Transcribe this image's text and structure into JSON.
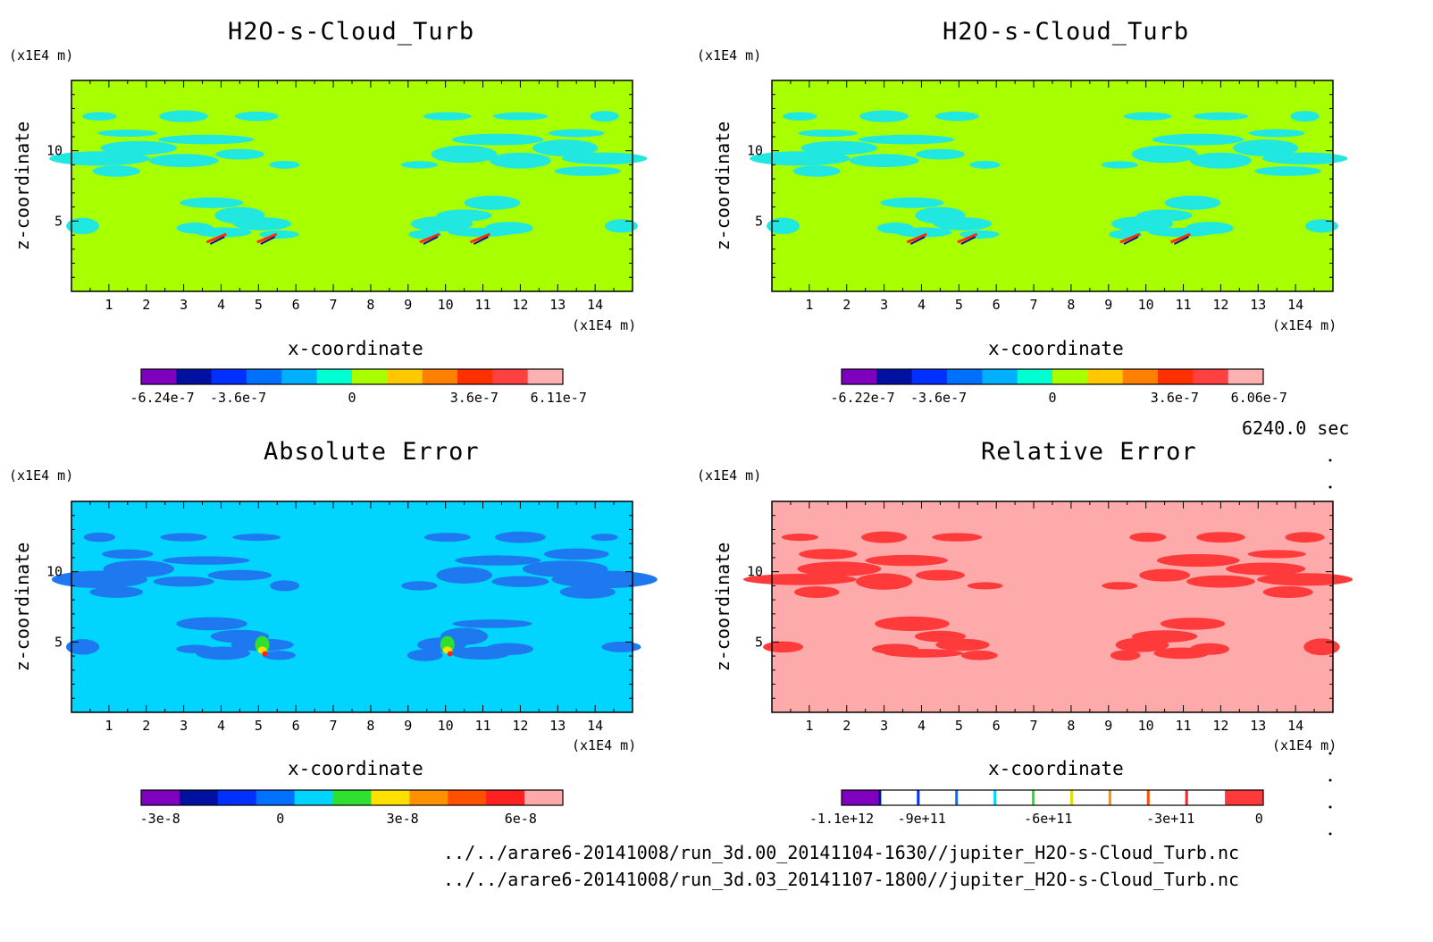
{
  "panels": [
    {
      "title": "H2O-s-Cloud_Turb",
      "unit_z": "(x1E4 m)",
      "unit_x": "(x1E4 m)",
      "xlabel": "x-coordinate",
      "ylabel": "z-coordinate",
      "background": "#a8ff00",
      "blob_color": "#20e8e0",
      "colorbar": {
        "colors": [
          "#8000c0",
          "#0010a0",
          "#0030ff",
          "#0070ff",
          "#00b0ff",
          "#00ffd0",
          "#a8ff00",
          "#ffc800",
          "#ff8000",
          "#ff3000",
          "#ff4040",
          "#ffb0b0"
        ],
        "labels": [
          "-6.24e-7",
          "-3.6e-7",
          "0",
          "3.6e-7",
          "6.11e-7"
        ]
      }
    },
    {
      "title": "H2O-s-Cloud_Turb",
      "unit_z": "(x1E4 m)",
      "unit_x": "(x1E4 m)",
      "xlabel": "x-coordinate",
      "ylabel": "z-coordinate",
      "background": "#a8ff00",
      "blob_color": "#20e8e0",
      "colorbar": {
        "colors": [
          "#8000c0",
          "#0010a0",
          "#0030ff",
          "#0070ff",
          "#00b0ff",
          "#00ffd0",
          "#a8ff00",
          "#ffc800",
          "#ff8000",
          "#ff3000",
          "#ff4040",
          "#ffb0b0"
        ],
        "labels": [
          "-6.22e-7",
          "-3.6e-7",
          "0",
          "3.6e-7",
          "6.06e-7"
        ]
      }
    },
    {
      "title": "Absolute Error",
      "unit_z": "(x1E4 m)",
      "unit_x": "(x1E4 m)",
      "xlabel": "x-coordinate",
      "ylabel": "z-coordinate",
      "background": "#00d4ff",
      "blob_color": "#1e78f0",
      "colorbar": {
        "colors": [
          "#8000c0",
          "#0010a0",
          "#0030ff",
          "#0070ff",
          "#00d4ff",
          "#30e030",
          "#ffe000",
          "#ff9000",
          "#ff5000",
          "#ff2020",
          "#ffaaaa"
        ],
        "labels": [
          "-3e-8",
          "0",
          "3e-8",
          "6e-8"
        ]
      }
    },
    {
      "title": "Relative Error",
      "unit_z": "(x1E4 m)",
      "unit_x": "(x1E4 m)",
      "xlabel": "x-coordinate",
      "ylabel": "z-coordinate",
      "background": "#ffaaaa",
      "blob_color": "#ff3a3a",
      "colorbar": {
        "colors": [
          "#8000c0",
          "#ffffff",
          "#ffffff",
          "#ffffff",
          "#ffffff",
          "#ffffff",
          "#ffffff",
          "#ffffff",
          "#ffffff",
          "#ffffff",
          "#ff3a3a"
        ],
        "labels": [
          "-1.1e+12",
          "-9e+11",
          "-6e+11",
          "-3e+11",
          "0"
        ]
      }
    }
  ],
  "time_label": "6240.0 sec",
  "files": [
    "../../arare6-20141008/run_3d.00_20141104-1630//jupiter_H2O-s-Cloud_Turb.nc",
    "../../arare6-20141008/run_3d.03_20141107-1800//jupiter_H2O-s-Cloud_Turb.nc"
  ],
  "chart_data": [
    {
      "type": "heatmap",
      "title": "H2O-s-Cloud_Turb",
      "xlabel": "x-coordinate",
      "ylabel": "z-coordinate",
      "x_unit": "(x1E4 m)",
      "z_unit": "(x1E4 m)",
      "xlim": [
        0,
        15
      ],
      "zlim": [
        0,
        15
      ],
      "x_ticks": [
        1,
        2,
        3,
        4,
        5,
        6,
        7,
        8,
        9,
        10,
        11,
        12,
        13,
        14
      ],
      "z_ticks": [
        5,
        10
      ],
      "colorbar_labels": [
        "-6.24e-7",
        "-3.6e-7",
        "0",
        "3.6e-7",
        "6.11e-7"
      ]
    },
    {
      "type": "heatmap",
      "title": "H2O-s-Cloud_Turb",
      "xlabel": "x-coordinate",
      "ylabel": "z-coordinate",
      "x_unit": "(x1E4 m)",
      "z_unit": "(x1E4 m)",
      "xlim": [
        0,
        15
      ],
      "zlim": [
        0,
        15
      ],
      "x_ticks": [
        1,
        2,
        3,
        4,
        5,
        6,
        7,
        8,
        9,
        10,
        11,
        12,
        13,
        14
      ],
      "z_ticks": [
        5,
        10
      ],
      "colorbar_labels": [
        "-6.22e-7",
        "-3.6e-7",
        "0",
        "3.6e-7",
        "6.06e-7"
      ]
    },
    {
      "type": "heatmap",
      "title": "Absolute Error",
      "xlabel": "x-coordinate",
      "ylabel": "z-coordinate",
      "x_unit": "(x1E4 m)",
      "z_unit": "(x1E4 m)",
      "xlim": [
        0,
        15
      ],
      "zlim": [
        0,
        15
      ],
      "x_ticks": [
        1,
        2,
        3,
        4,
        5,
        6,
        7,
        8,
        9,
        10,
        11,
        12,
        13,
        14
      ],
      "z_ticks": [
        5,
        10
      ],
      "colorbar_labels": [
        "-3e-8",
        "0",
        "3e-8",
        "6e-8"
      ]
    },
    {
      "type": "heatmap",
      "title": "Relative Error",
      "xlabel": "x-coordinate",
      "ylabel": "z-coordinate",
      "x_unit": "(x1E4 m)",
      "z_unit": "(x1E4 m)",
      "xlim": [
        0,
        15
      ],
      "zlim": [
        0,
        15
      ],
      "x_ticks": [
        1,
        2,
        3,
        4,
        5,
        6,
        7,
        8,
        9,
        10,
        11,
        12,
        13,
        14
      ],
      "z_ticks": [
        5,
        10
      ],
      "colorbar_labels": [
        "-1.1e+12",
        "-9e+11",
        "-6e+11",
        "-3e+11",
        "0"
      ]
    }
  ]
}
